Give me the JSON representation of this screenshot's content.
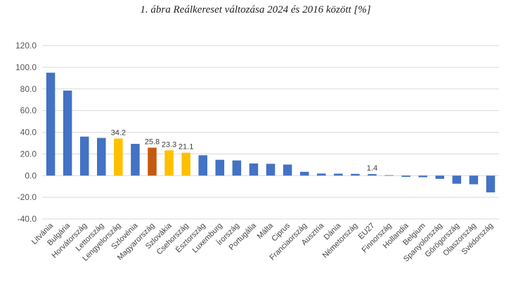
{
  "chart_data": {
    "type": "bar",
    "title": "1. ábra Reálkereset változása 2024 és 2016 között [%]",
    "xlabel": "",
    "ylabel": "",
    "ylim": [
      -40,
      120
    ],
    "yticks": [
      "120.0",
      "100.0",
      "80.0",
      "60.0",
      "40.0",
      "20.0",
      "0.0",
      "-20.0",
      "-40.0"
    ],
    "ytick_values": [
      120,
      100,
      80,
      60,
      40,
      20,
      0,
      -20,
      -40
    ],
    "grid": true,
    "categories": [
      "Litvánia",
      "Bulgária",
      "Horvátország",
      "Lettország",
      "Lengyelország",
      "Szlovénia",
      "Magyarország",
      "Szlovákia",
      "Csehország",
      "Észtország",
      "Luxemburg",
      "Írország",
      "Portugália",
      "Málta",
      "Ciprus",
      "Franciaország",
      "Ausztria",
      "Dánia",
      "Németország",
      "EU27",
      "Finnország",
      "Hollandia",
      "Belgium",
      "Spanyolország",
      "Görögország",
      "Olaszország",
      "Svédország"
    ],
    "values": [
      95.0,
      78.5,
      36.0,
      34.8,
      34.2,
      29.3,
      25.8,
      23.3,
      21.1,
      18.8,
      14.6,
      14.0,
      11.2,
      10.9,
      10.2,
      3.5,
      1.9,
      1.8,
      1.6,
      1.4,
      0.4,
      -1.2,
      -1.5,
      -3.0,
      -7.5,
      -8.0,
      -15.5
    ],
    "colors": [
      "#4472C4",
      "#4472C4",
      "#4472C4",
      "#4472C4",
      "#FFC000",
      "#4472C4",
      "#C55A11",
      "#FFC000",
      "#FFC000",
      "#4472C4",
      "#4472C4",
      "#4472C4",
      "#4472C4",
      "#4472C4",
      "#4472C4",
      "#4472C4",
      "#4472C4",
      "#4472C4",
      "#4472C4",
      "#4472C4",
      "#4472C4",
      "#4472C4",
      "#4472C4",
      "#4472C4",
      "#4472C4",
      "#4472C4",
      "#4472C4"
    ],
    "data_labels": [
      {
        "index": 4,
        "text": "34.2"
      },
      {
        "index": 6,
        "text": "25.8"
      },
      {
        "index": 7,
        "text": "23.3"
      },
      {
        "index": 8,
        "text": "21.1"
      },
      {
        "index": 19,
        "text": "1.4"
      }
    ],
    "grid_color": "#D9D9D9"
  }
}
